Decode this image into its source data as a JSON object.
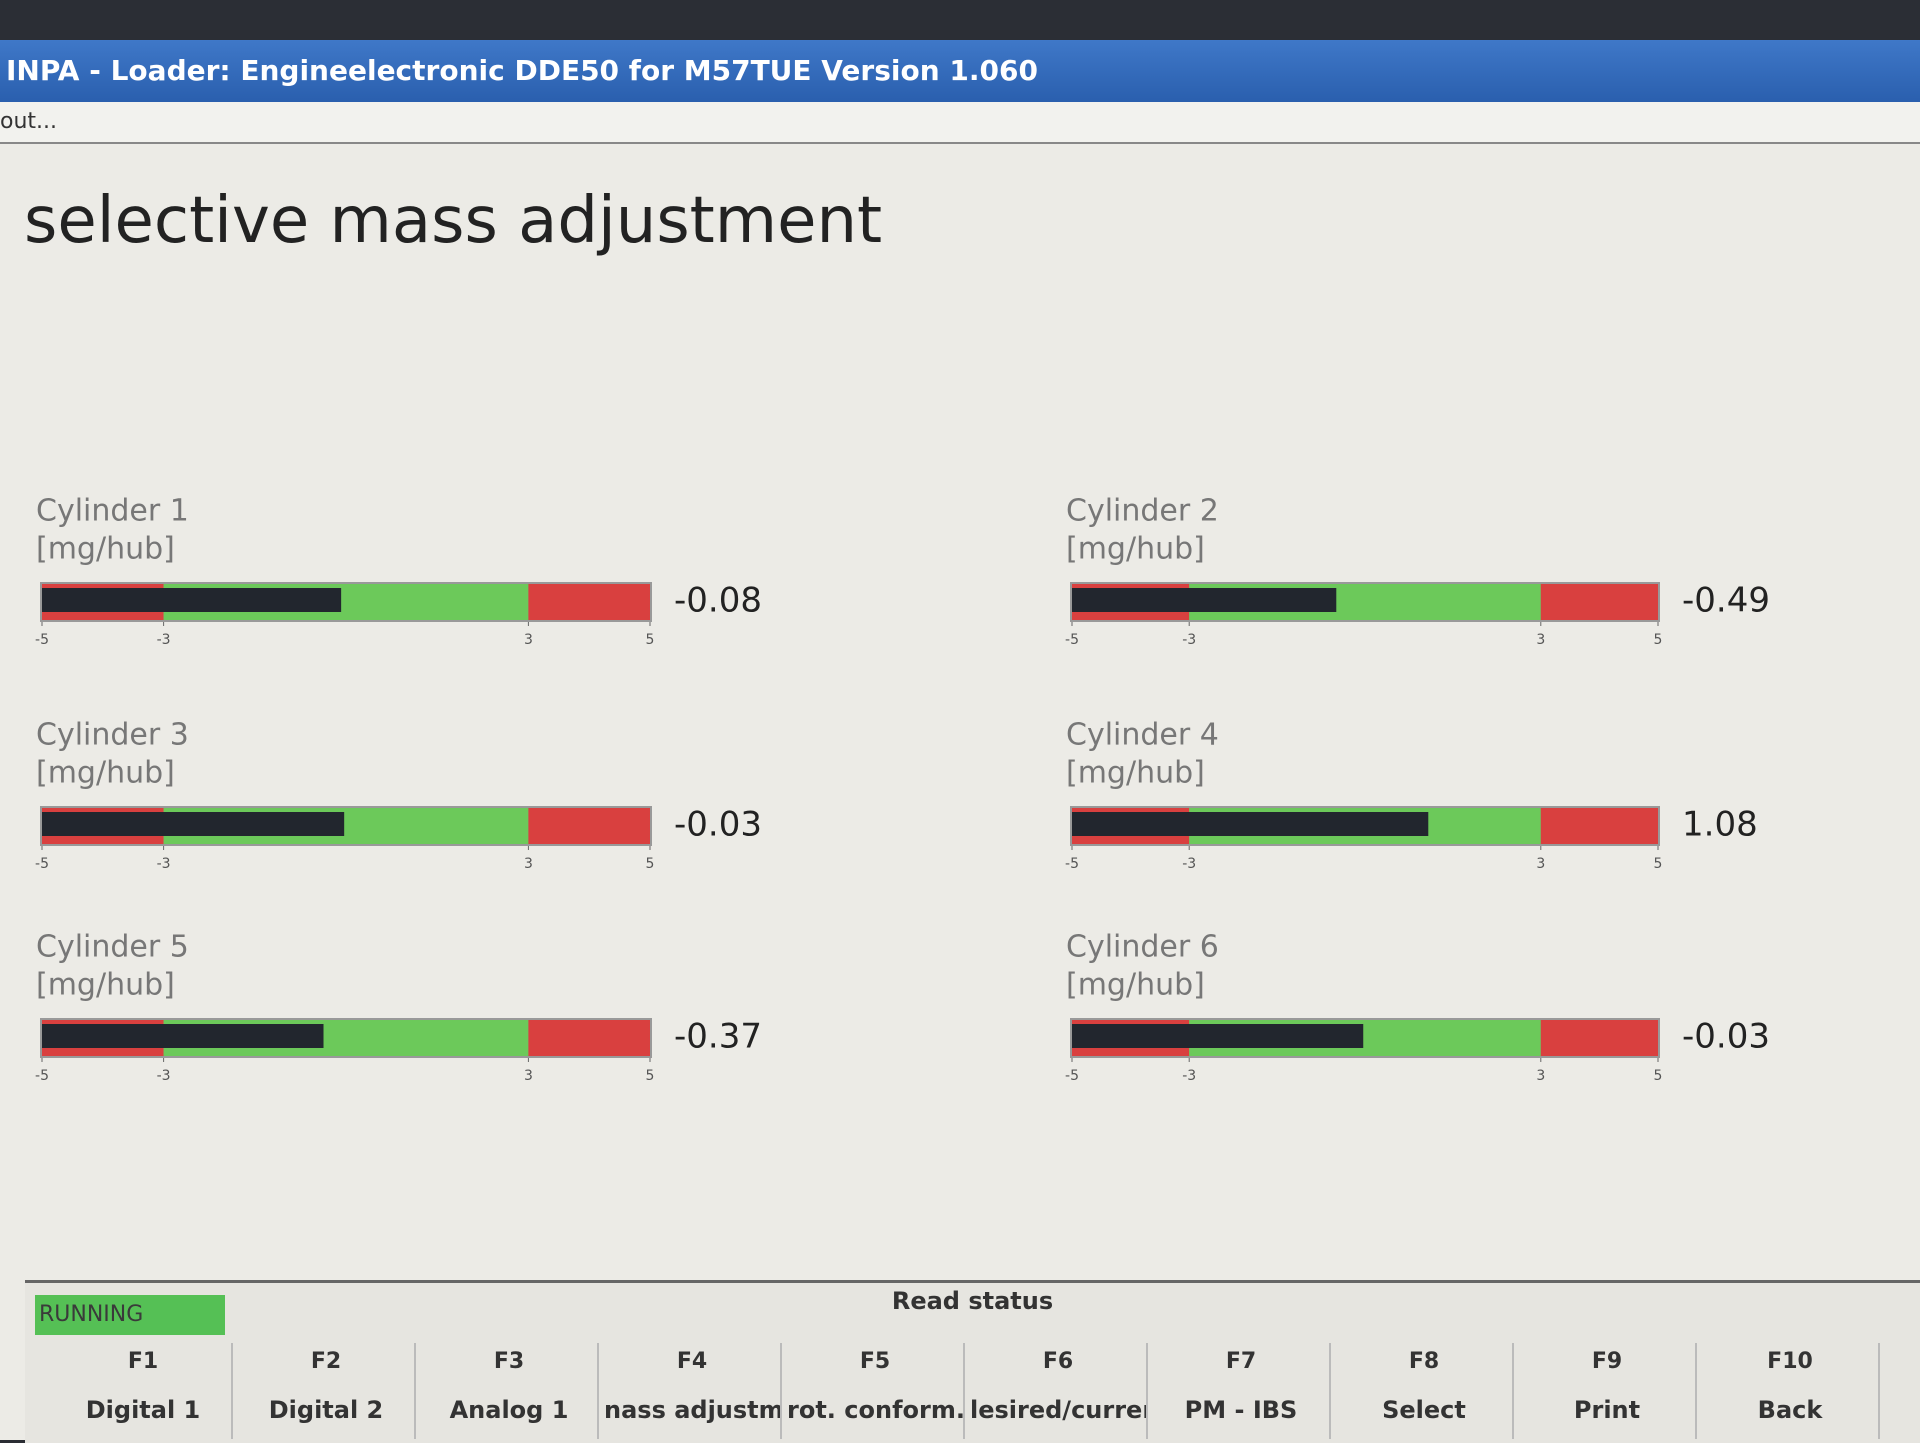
{
  "window": {
    "title": "INPA - Loader:  Engineelectronic DDE50 for M57TUE Version 1.060",
    "menu": "out..."
  },
  "screen_title": "selective mass adjustment",
  "gauges": [
    {
      "label": "Cylinder 1",
      "unit": "[mg/hub]",
      "value": -0.08
    },
    {
      "label": "Cylinder 2",
      "unit": "[mg/hub]",
      "value": -0.49
    },
    {
      "label": "Cylinder 3",
      "unit": "[mg/hub]",
      "value": -0.03
    },
    {
      "label": "Cylinder 4",
      "unit": "[mg/hub]",
      "value": 1.08
    },
    {
      "label": "Cylinder 5",
      "unit": "[mg/hub]",
      "value": -0.37
    },
    {
      "label": "Cylinder 6",
      "unit": "[mg/hub]",
      "value": -0.03
    }
  ],
  "scale": {
    "lim": [
      -5,
      5
    ],
    "ticks": [
      -5,
      -3,
      3,
      5
    ],
    "zones": [
      {
        "from": -5,
        "to": -3,
        "color": "#d9403f"
      },
      {
        "from": -3,
        "to": 3,
        "color": "#6cc95a"
      },
      {
        "from": 3,
        "to": 5,
        "color": "#d9403f"
      }
    ],
    "fill_color": "#22262e"
  },
  "status": {
    "state": "RUNNING",
    "caption": "Read status"
  },
  "keys": [
    {
      "key": "F1",
      "label": "Digital 1"
    },
    {
      "key": "F2",
      "label": "Digital 2"
    },
    {
      "key": "F3",
      "label": "Analog 1"
    },
    {
      "key": "F4",
      "label": "nass adjustm"
    },
    {
      "key": "F5",
      "label": "rot. conform."
    },
    {
      "key": "F6",
      "label": "lesired/curren"
    },
    {
      "key": "F7",
      "label": "PM - IBS"
    },
    {
      "key": "F8",
      "label": "Select"
    },
    {
      "key": "F9",
      "label": "Print"
    },
    {
      "key": "F10",
      "label": "Back"
    }
  ]
}
